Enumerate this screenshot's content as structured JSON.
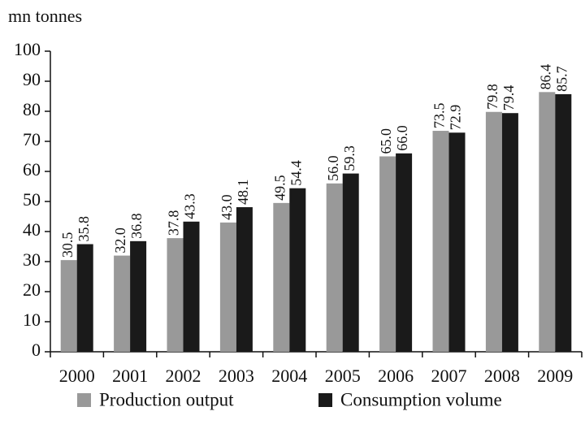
{
  "chart_data": {
    "type": "bar",
    "y_axis_label": "mn tonnes",
    "categories": [
      "2000",
      "2001",
      "2002",
      "2003",
      "2004",
      "2005",
      "2006",
      "2007",
      "2008",
      "2009"
    ],
    "series": [
      {
        "name": "Production output",
        "color": "#999999",
        "values": [
          30.5,
          32.0,
          37.8,
          43.0,
          49.5,
          56.0,
          65.0,
          73.5,
          79.8,
          86.4
        ],
        "value_labels": [
          "30.5",
          "32.0",
          "37.8",
          "43.0",
          "49.5",
          "56.0",
          "65.0",
          "73.5",
          "79.8",
          "86.4"
        ]
      },
      {
        "name": "Consumption volume",
        "color": "#1a1a1a",
        "values": [
          35.8,
          36.8,
          43.3,
          48.1,
          54.4,
          59.3,
          66.0,
          72.9,
          79.4,
          85.7
        ],
        "value_labels": [
          "35.8",
          "36.8",
          "43.3",
          "48.1",
          "54.4",
          "59.3",
          "66.0",
          "72.9",
          "79.4",
          "85.7"
        ]
      }
    ],
    "ylim": [
      0,
      100
    ],
    "yticks": [
      0,
      10,
      20,
      30,
      40,
      50,
      60,
      70,
      80,
      90,
      100
    ],
    "legend": "bottom"
  }
}
